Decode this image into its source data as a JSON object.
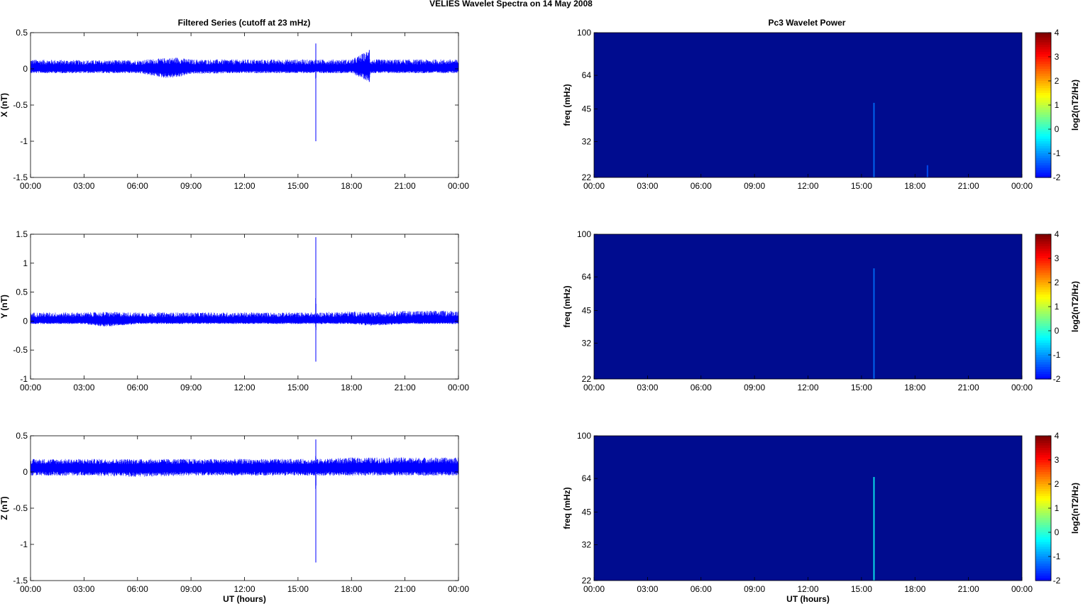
{
  "figure": {
    "title": "VELIES Wavelet Spectra on 14 May       2008",
    "left_title": "Filtered Series (cutoff at 23 mHz)",
    "right_title": "Pc3 Wavelet Power"
  },
  "colors": {
    "trace": "#0000ff",
    "spectrogram_background": "#000c8f",
    "axis": "#000000",
    "colormap": [
      "#00008f",
      "#0000ff",
      "#0080ff",
      "#00ffff",
      "#80ff80",
      "#ffff00",
      "#ff8000",
      "#ff0000",
      "#800000"
    ]
  },
  "chart_data": [
    {
      "type": "line",
      "panel": "X",
      "title": "Filtered Series (cutoff at 23 mHz)",
      "xlabel": "",
      "ylabel": "X (nT)",
      "x_ticks": [
        "00:00",
        "03:00",
        "06:00",
        "09:00",
        "12:00",
        "15:00",
        "18:00",
        "21:00",
        "00:00"
      ],
      "y_ticks": [
        "0.5",
        "0",
        "-0.5",
        "-1",
        "-1.5"
      ],
      "ylim": [
        -1.5,
        0.5
      ],
      "xlim_hours": [
        0,
        24
      ],
      "baseline": 0.0,
      "noise_band": [
        -0.08,
        0.14
      ],
      "series": [
        {
          "x_hours": [
            0,
            3,
            6,
            7.6,
            8.2,
            9,
            12,
            15,
            15.98,
            16.0,
            16.02,
            18,
            19.0,
            19.05,
            21,
            24
          ],
          "y_upper": [
            0.13,
            0.12,
            0.12,
            0.15,
            0.16,
            0.13,
            0.13,
            0.13,
            0.13,
            0.35,
            0.13,
            0.13,
            0.26,
            0.13,
            0.13,
            0.13
          ],
          "y_lower": [
            -0.06,
            -0.06,
            -0.06,
            -0.13,
            -0.12,
            -0.07,
            -0.06,
            -0.06,
            -0.06,
            -1.0,
            -0.06,
            -0.06,
            -0.18,
            -0.06,
            -0.06,
            -0.06
          ]
        }
      ]
    },
    {
      "type": "line",
      "panel": "Y",
      "title": "",
      "xlabel": "",
      "ylabel": "Y (nT)",
      "x_ticks": [
        "00:00",
        "03:00",
        "06:00",
        "09:00",
        "12:00",
        "15:00",
        "18:00",
        "21:00",
        "00:00"
      ],
      "y_ticks": [
        "1.5",
        "1",
        "0.5",
        "0",
        "-0.5",
        "-1"
      ],
      "ylim": [
        -1,
        1.5
      ],
      "xlim_hours": [
        0,
        24
      ],
      "baseline": 0.0,
      "noise_band": [
        -0.06,
        0.16
      ],
      "series": [
        {
          "x_hours": [
            0,
            3,
            4.2,
            6,
            9,
            12,
            15,
            15.98,
            16.0,
            16.02,
            18,
            19.1,
            21,
            24
          ],
          "y_upper": [
            0.15,
            0.15,
            0.16,
            0.15,
            0.15,
            0.15,
            0.15,
            0.15,
            1.45,
            0.15,
            0.17,
            0.15,
            0.18,
            0.18
          ],
          "y_lower": [
            -0.05,
            -0.05,
            -0.1,
            -0.05,
            -0.05,
            -0.05,
            -0.05,
            -0.05,
            -0.7,
            -0.05,
            -0.05,
            -0.08,
            -0.05,
            -0.05
          ]
        }
      ]
    },
    {
      "type": "line",
      "panel": "Z",
      "title": "",
      "xlabel": "UT (hours)",
      "ylabel": "Z (nT)",
      "x_ticks": [
        "00:00",
        "03:00",
        "06:00",
        "09:00",
        "12:00",
        "15:00",
        "18:00",
        "21:00",
        "00:00"
      ],
      "y_ticks": [
        "0.5",
        "0",
        "-0.5",
        "-1",
        "-1.5"
      ],
      "ylim": [
        -1.5,
        0.5
      ],
      "xlim_hours": [
        0,
        24
      ],
      "baseline": 0.05,
      "noise_band": [
        -0.04,
        0.2
      ],
      "series": [
        {
          "x_hours": [
            0,
            3,
            6,
            9,
            12,
            15,
            15.98,
            16.0,
            16.02,
            18,
            21,
            24
          ],
          "y_upper": [
            0.18,
            0.18,
            0.18,
            0.18,
            0.18,
            0.18,
            0.18,
            0.45,
            0.18,
            0.2,
            0.2,
            0.2
          ],
          "y_lower": [
            -0.05,
            -0.05,
            -0.07,
            -0.05,
            -0.05,
            -0.05,
            -0.05,
            -1.25,
            -0.05,
            -0.05,
            -0.05,
            -0.05
          ]
        }
      ]
    },
    {
      "type": "heatmap",
      "panel": "X",
      "title": "Pc3 Wavelet Power",
      "xlabel": "",
      "ylabel": "freq (mHz)",
      "x_ticks": [
        "00:00",
        "03:00",
        "06:00",
        "09:00",
        "12:00",
        "15:00",
        "18:00",
        "21:00",
        "00:00"
      ],
      "y_ticks": [
        "100",
        "64",
        "45",
        "32",
        "22"
      ],
      "y_scale": "log",
      "ylim_mHz": [
        22,
        100
      ],
      "xlim_hours": [
        0,
        24
      ],
      "colorbar": {
        "label": "log2(nT2/Hz)",
        "ticks": [
          "4",
          "3",
          "2",
          "1",
          "0",
          "-1",
          "-2"
        ],
        "range": [
          -2,
          4
        ]
      },
      "background_level": -1.6,
      "features": [
        {
          "hour": 15.7,
          "freq_max_mHz": 48,
          "level": -1.2
        },
        {
          "hour": 18.7,
          "freq_max_mHz": 25,
          "level": -1.4
        }
      ]
    },
    {
      "type": "heatmap",
      "panel": "Y",
      "title": "",
      "xlabel": "",
      "ylabel": "freq (mHz)",
      "x_ticks": [
        "00:00",
        "03:00",
        "06:00",
        "09:00",
        "12:00",
        "15:00",
        "18:00",
        "21:00",
        "00:00"
      ],
      "y_ticks": [
        "100",
        "64",
        "45",
        "32",
        "22"
      ],
      "y_scale": "log",
      "ylim_mHz": [
        22,
        100
      ],
      "xlim_hours": [
        0,
        24
      ],
      "colorbar": {
        "label": "log2(nT2/Hz)",
        "ticks": [
          "4",
          "3",
          "2",
          "1",
          "0",
          "-1",
          "-2"
        ],
        "range": [
          -2,
          4
        ]
      },
      "background_level": -1.6,
      "features": [
        {
          "hour": 15.7,
          "freq_max_mHz": 70,
          "level": -1.2
        }
      ]
    },
    {
      "type": "heatmap",
      "panel": "Z",
      "title": "",
      "xlabel": "UT (hours)",
      "ylabel": "freq (mHz)",
      "x_ticks": [
        "00:00",
        "03:00",
        "06:00",
        "09:00",
        "12:00",
        "15:00",
        "18:00",
        "21:00",
        "00:00"
      ],
      "y_ticks": [
        "100",
        "64",
        "45",
        "32",
        "22"
      ],
      "y_scale": "log",
      "ylim_mHz": [
        22,
        100
      ],
      "xlim_hours": [
        0,
        24
      ],
      "colorbar": {
        "label": "log2(nT2/Hz)",
        "ticks": [
          "4",
          "3",
          "2",
          "1",
          "0",
          "-1",
          "-2"
        ],
        "range": [
          -2,
          4
        ]
      },
      "background_level": -1.6,
      "features": [
        {
          "hour": 15.7,
          "freq_max_mHz": 65,
          "level": -0.2
        }
      ]
    }
  ]
}
